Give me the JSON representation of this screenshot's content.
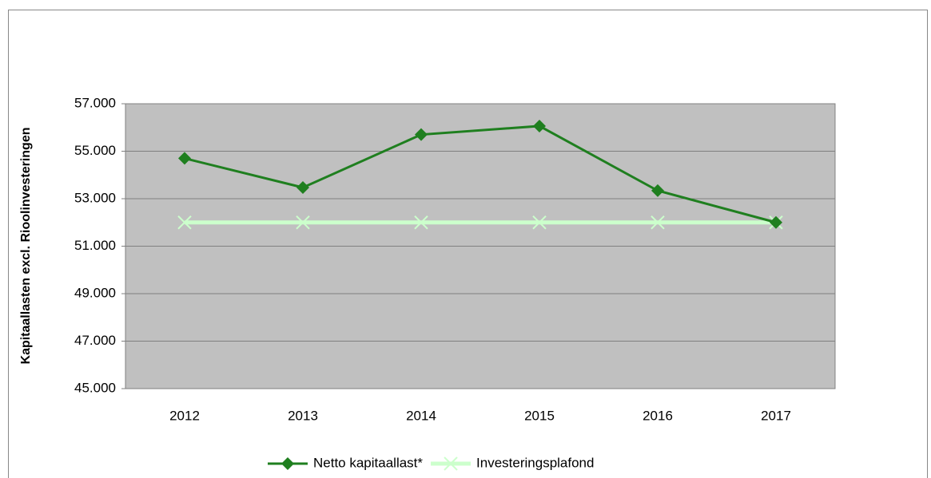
{
  "chart_data": {
    "type": "line",
    "y_label": "Kapitaallasten excl. Rioolinvesteringen",
    "categories": [
      "2012",
      "2013",
      "2014",
      "2015",
      "2016",
      "2017"
    ],
    "series": [
      {
        "name": "Netto kapitaallast*",
        "color": "#1f7f1f",
        "marker": "diamond",
        "values": [
          54700,
          53470,
          55700,
          56060,
          53340,
          52000
        ]
      },
      {
        "name": "Investeringsplafond",
        "color": "#ccffcc",
        "marker": "x",
        "values": [
          52000,
          52000,
          52000,
          52000,
          52000,
          52000
        ]
      }
    ],
    "ylim": [
      45000,
      57000
    ],
    "yticks": [
      {
        "value": 45000,
        "label": "45.000"
      },
      {
        "value": 47000,
        "label": "47.000"
      },
      {
        "value": 49000,
        "label": "49.000"
      },
      {
        "value": 51000,
        "label": "51.000"
      },
      {
        "value": 53000,
        "label": "53.000"
      },
      {
        "value": 55000,
        "label": "55.000"
      },
      {
        "value": 57000,
        "label": "57.000"
      }
    ],
    "grid": true,
    "legend": "bottom"
  }
}
